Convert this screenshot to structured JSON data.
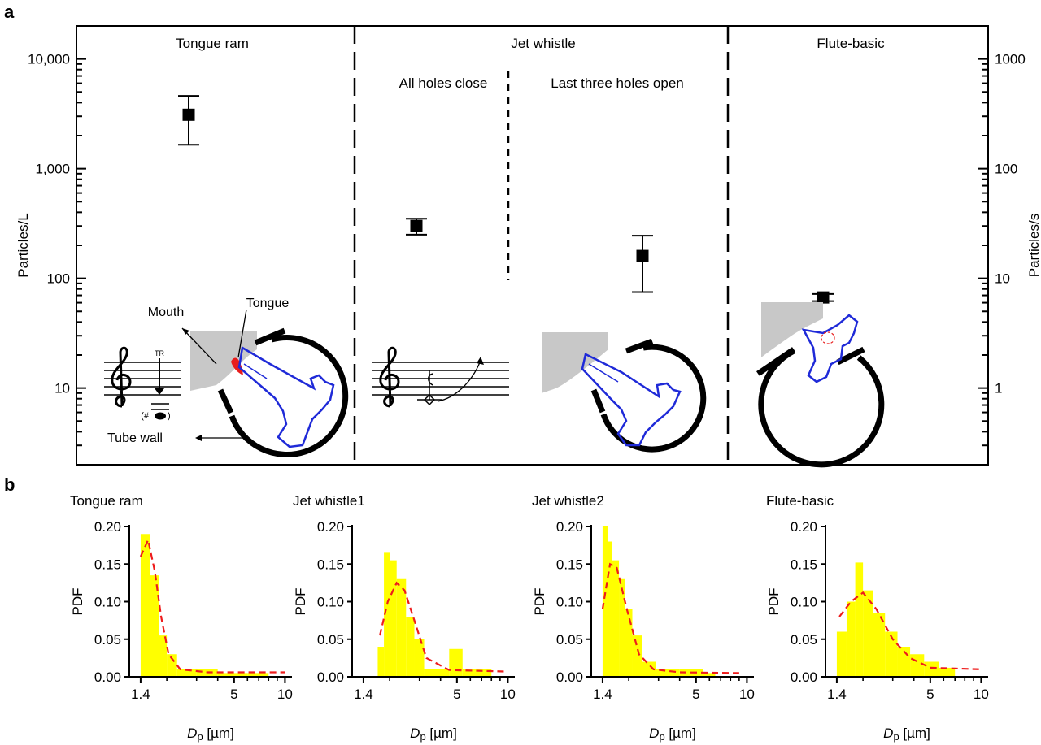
{
  "panels": {
    "a": "a",
    "b": "b"
  },
  "chart_data": [
    {
      "type": "scatter",
      "panel": "a",
      "ylabel": "Particles/L",
      "y2label": "Particles/s",
      "yscale": "log",
      "ylim": [
        2,
        20000
      ],
      "y2lim": [
        0.2,
        2000
      ],
      "yticks": [
        {
          "v": 10,
          "label": "10"
        },
        {
          "v": 100,
          "label": "100"
        },
        {
          "v": 1000,
          "label": "1,000"
        },
        {
          "v": 10000,
          "label": "10,000"
        }
      ],
      "y2ticks": [
        {
          "v": 1,
          "label": "1"
        },
        {
          "v": 10,
          "label": "10"
        },
        {
          "v": 100,
          "label": "100"
        },
        {
          "v": 1000,
          "label": "1000"
        }
      ],
      "sections": [
        "Tongue ram",
        "Jet whistle",
        "Flute-basic"
      ],
      "subsections": [
        "All holes close",
        "Last three holes open"
      ],
      "points": [
        {
          "y": 3100,
          "ylow": 1650,
          "yhigh": 4600
        },
        {
          "y": 300,
          "ylow": 250,
          "yhigh": 350
        },
        {
          "y": 160,
          "ylow": 75,
          "yhigh": 245
        },
        {
          "y": 67,
          "ylow": 62,
          "yhigh": 72
        }
      ],
      "annotations": {
        "mouth": "Mouth",
        "tongue": "Tongue",
        "tube_wall": "Tube wall",
        "tr": "TR",
        "grace": "(#",
        "grace_close": ")"
      },
      "colors": {
        "airway": "#1f2ad8",
        "tongue": "#e81c1c",
        "lip": "#c8c8c8"
      }
    },
    {
      "type": "bar",
      "panel": "b",
      "xscale": "log",
      "xlim": [
        1.2,
        11
      ],
      "ylim": [
        0,
        0.2
      ],
      "xlabel_base": "D",
      "xlabel_sub": "p",
      "xlabel_unit": " [µm]",
      "ylabel": "PDF",
      "xticks": [
        {
          "v": 1.4,
          "label": "1.4"
        },
        {
          "v": 5,
          "label": "5"
        },
        {
          "v": 10,
          "label": "10"
        }
      ],
      "yticks": [
        "0.00",
        "0.05",
        "0.10",
        "0.15",
        "0.20"
      ],
      "colors": {
        "bar": "#ffff00",
        "fit": "#ee1c1c"
      },
      "subplots": [
        {
          "title": "Tongue ram",
          "bins": [
            [
              1.4,
              1.6,
              0.19
            ],
            [
              1.6,
              1.8,
              0.135
            ],
            [
              1.8,
              2.0,
              0.055
            ],
            [
              2.0,
              2.3,
              0.03
            ],
            [
              2.3,
              3.0,
              0.01
            ],
            [
              3.0,
              4.0,
              0.01
            ],
            [
              4.0,
              6.0,
              0.005
            ],
            [
              6.0,
              8.0,
              0.005
            ]
          ],
          "fit": [
            [
              1.4,
              0.16
            ],
            [
              1.55,
              0.182
            ],
            [
              1.7,
              0.14
            ],
            [
              1.85,
              0.08
            ],
            [
              2.05,
              0.03
            ],
            [
              2.4,
              0.01
            ],
            [
              3.5,
              0.006
            ],
            [
              10,
              0.006
            ]
          ]
        },
        {
          "title": "Jet whistle1",
          "bins": [
            [
              1.7,
              1.85,
              0.04
            ],
            [
              1.85,
              2.0,
              0.165
            ],
            [
              2.0,
              2.2,
              0.155
            ],
            [
              2.2,
              2.5,
              0.13
            ],
            [
              2.5,
              2.8,
              0.08
            ],
            [
              2.8,
              3.2,
              0.05
            ],
            [
              3.2,
              4.5,
              0.01
            ],
            [
              4.5,
              5.4,
              0.037
            ],
            [
              5.4,
              8.0,
              0.01
            ]
          ],
          "fit": [
            [
              1.75,
              0.055
            ],
            [
              1.95,
              0.1
            ],
            [
              2.2,
              0.125
            ],
            [
              2.45,
              0.115
            ],
            [
              2.8,
              0.075
            ],
            [
              3.3,
              0.025
            ],
            [
              4.5,
              0.009
            ],
            [
              9.5,
              0.007
            ]
          ]
        },
        {
          "title": "Jet whistle2",
          "bins": [
            [
              1.4,
              1.5,
              0.2
            ],
            [
              1.5,
              1.6,
              0.18
            ],
            [
              1.6,
              1.75,
              0.155
            ],
            [
              1.75,
              1.9,
              0.13
            ],
            [
              1.9,
              2.1,
              0.09
            ],
            [
              2.1,
              2.4,
              0.055
            ],
            [
              2.4,
              2.9,
              0.02
            ],
            [
              2.9,
              4.0,
              0.01
            ],
            [
              4.0,
              5.5,
              0.01
            ],
            [
              5.5,
              6.5,
              0.005
            ]
          ],
          "fit": [
            [
              1.4,
              0.09
            ],
            [
              1.55,
              0.15
            ],
            [
              1.7,
              0.145
            ],
            [
              1.95,
              0.09
            ],
            [
              2.3,
              0.03
            ],
            [
              2.8,
              0.01
            ],
            [
              4.0,
              0.006
            ],
            [
              9,
              0.005
            ]
          ]
        },
        {
          "title": "Flute-basic",
          "bins": [
            [
              1.4,
              1.6,
              0.06
            ],
            [
              1.6,
              1.8,
              0.1
            ],
            [
              1.8,
              2.0,
              0.152
            ],
            [
              2.0,
              2.3,
              0.115
            ],
            [
              2.3,
              2.7,
              0.085
            ],
            [
              2.7,
              3.2,
              0.06
            ],
            [
              3.2,
              3.8,
              0.04
            ],
            [
              3.8,
              4.6,
              0.03
            ],
            [
              4.6,
              5.6,
              0.02
            ],
            [
              5.6,
              7.0,
              0.012
            ]
          ],
          "fit": [
            [
              1.45,
              0.08
            ],
            [
              1.7,
              0.1
            ],
            [
              2.0,
              0.112
            ],
            [
              2.4,
              0.09
            ],
            [
              3.0,
              0.05
            ],
            [
              3.8,
              0.025
            ],
            [
              5,
              0.012
            ],
            [
              10,
              0.01
            ]
          ]
        }
      ]
    }
  ]
}
